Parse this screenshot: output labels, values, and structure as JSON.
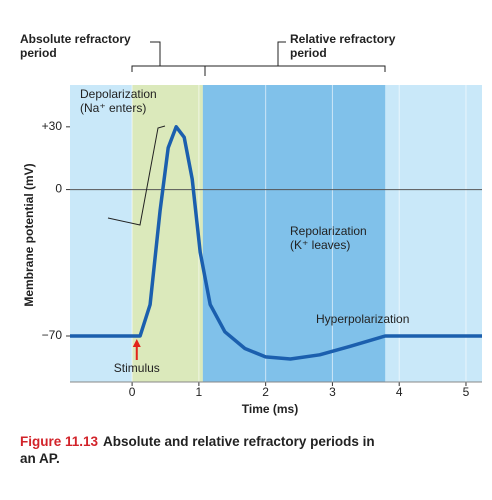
{
  "chart_data": {
    "type": "line",
    "x_label": "Time (ms)",
    "y_label": "Membrane potential (mV)",
    "xlim": [
      -0.93,
      5.24
    ],
    "ylim": [
      -92,
      50
    ],
    "xticks": [
      0,
      1,
      2,
      3,
      4,
      5
    ],
    "yticks": [
      {
        "value": 30,
        "label": "+30"
      },
      0,
      {
        "value": -70,
        "label": "−70"
      }
    ],
    "grid": true,
    "zero_line": true,
    "background_color": "#c9e8f9",
    "series": [
      {
        "color": "#1b5fae",
        "x": [
          -0.93,
          0.12,
          0.27,
          0.42,
          0.54,
          0.66,
          0.78,
          0.9,
          1.02,
          1.17,
          1.39,
          1.69,
          2.0,
          2.37,
          2.81,
          3.26,
          3.79,
          5.24
        ],
        "values": [
          -70,
          -70,
          -55,
          -10,
          20,
          30,
          25,
          5,
          -30,
          -55,
          -68,
          -76,
          -80,
          -81,
          -79,
          -75,
          -70,
          -70
        ]
      }
    ],
    "absolute_refractory": {
      "label": [
        "Absolute refractory",
        "period"
      ],
      "x": [
        0,
        1.06
      ],
      "color": "#dbe9bb"
    },
    "relative_refractory": {
      "label": [
        "Relative refractory",
        "period"
      ],
      "x": [
        1.06,
        3.79
      ],
      "color": "#80c1ea"
    },
    "annotations": [
      {
        "text": [
          "Depolarization",
          "(Na⁺ enters)"
        ]
      },
      {
        "text": [
          "Repolarization",
          "(K⁺ leaves)"
        ]
      },
      {
        "text": [
          "Hyperpolarization"
        ]
      }
    ],
    "stimulus": {
      "label": "Stimulus",
      "x": 0.07,
      "color": "#e2231a"
    },
    "caption": {
      "number": "Figure 11.13",
      "text": "Absolute and relative refractory periods in an AP."
    }
  }
}
